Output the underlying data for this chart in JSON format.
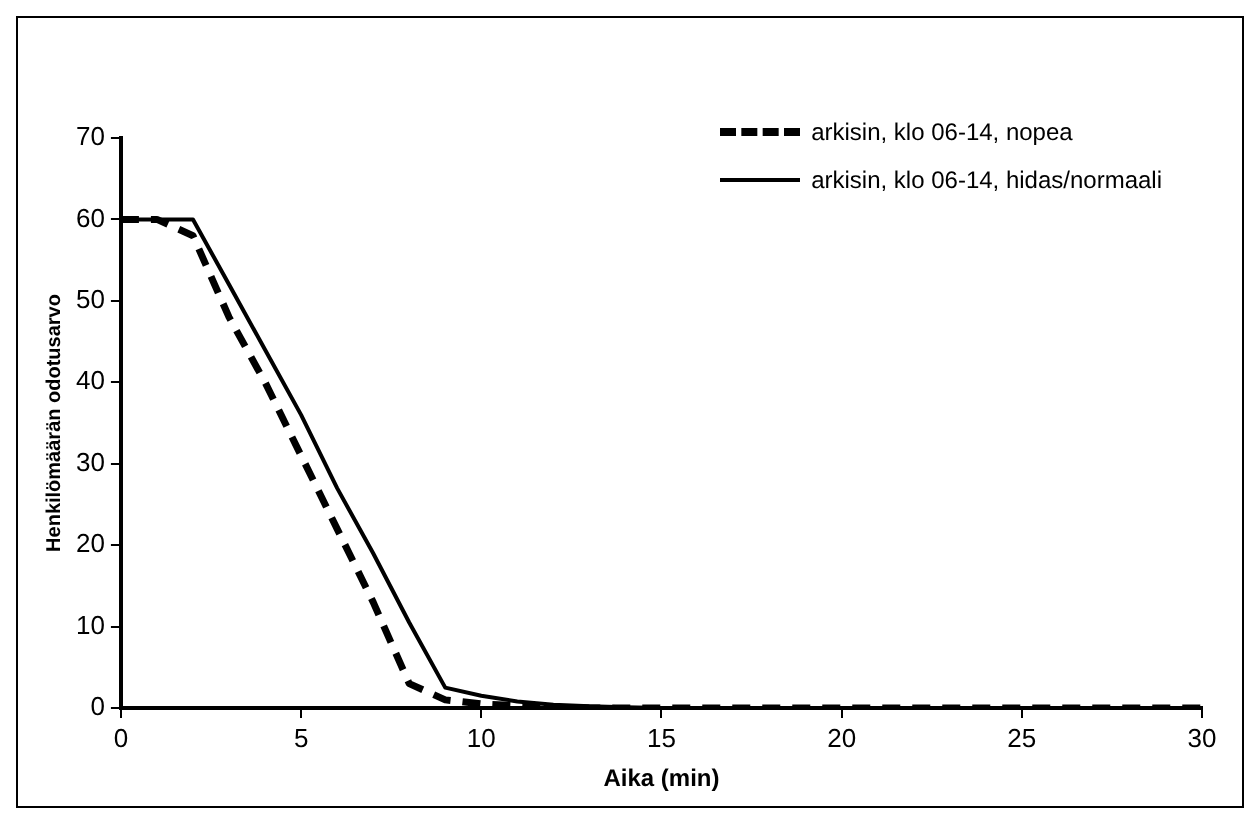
{
  "chart_data": {
    "type": "line",
    "xlabel": "Aika (min)",
    "ylabel": "Henkilömäärän odotusarvo",
    "x": [
      0,
      1,
      2,
      3,
      4,
      5,
      6,
      7,
      8,
      9,
      10,
      11,
      12,
      13,
      14,
      15,
      20,
      25,
      30
    ],
    "xlim": [
      0,
      30
    ],
    "xticks": [
      0,
      5,
      10,
      15,
      20,
      25,
      30
    ],
    "ylim": [
      0,
      70
    ],
    "yticks": [
      0,
      10,
      20,
      30,
      40,
      50,
      60,
      70
    ],
    "grid": false,
    "legend": "top right",
    "marker": "none",
    "series": [
      {
        "name": "arkisin, klo 06-14, nopea",
        "color": "#000000",
        "line_style": "dashed",
        "values": [
          60,
          60,
          58,
          48,
          40,
          31,
          22,
          13,
          3,
          1,
          0.5,
          0.3,
          0.1,
          0,
          0,
          0,
          0,
          0,
          0
        ]
      },
      {
        "name": "arkisin, klo 06-14, hidas/normaali",
        "color": "#000000",
        "line_style": "solid",
        "values": [
          60,
          60,
          60,
          52,
          44,
          36,
          27,
          19,
          10.5,
          2.5,
          1.5,
          0.8,
          0.4,
          0.2,
          0.1,
          0,
          0,
          0,
          0
        ]
      }
    ]
  }
}
